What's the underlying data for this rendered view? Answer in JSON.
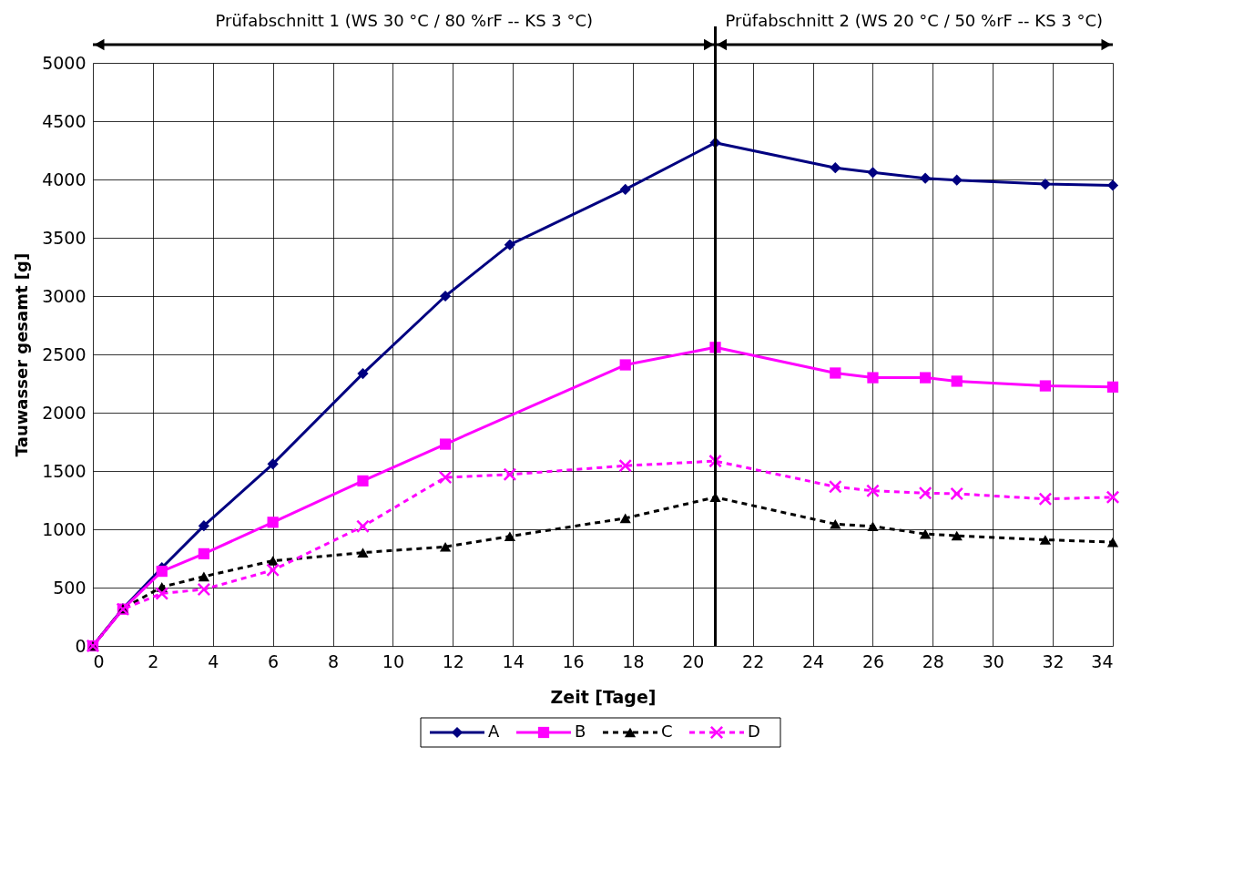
{
  "chart_data": {
    "type": "line",
    "xlabel": "Zeit [Tage]",
    "ylabel": "Tauwasser gesamt [g]",
    "x": [
      0,
      1,
      2.3,
      3.7,
      6,
      9,
      11.75,
      13.9,
      17.75,
      20.75,
      24.75,
      26,
      27.75,
      28.8,
      31.75,
      34
    ],
    "series": [
      {
        "name": "A",
        "color": "#000080",
        "marker": "diamond",
        "line_style": "solid",
        "values": [
          0,
          320,
          670,
          1030,
          1560,
          2335,
          3000,
          3440,
          3915,
          4315,
          4100,
          4060,
          4010,
          3995,
          3960,
          3950
        ]
      },
      {
        "name": "B",
        "color": "#ff00ff",
        "marker": "square",
        "line_style": "solid",
        "values": [
          0,
          315,
          640,
          790,
          1060,
          1415,
          1730,
          null,
          2410,
          2560,
          2340,
          2300,
          2300,
          2270,
          2230,
          2220
        ]
      },
      {
        "name": "C",
        "color": "#000000",
        "marker": "triangle",
        "line_style": "dashed",
        "values": [
          0,
          320,
          505,
          595,
          730,
          800,
          850,
          940,
          1095,
          1275,
          1045,
          1025,
          960,
          945,
          910,
          890
        ]
      },
      {
        "name": "D",
        "color": "#ff00ff",
        "marker": "cross",
        "line_style": "dashed",
        "values": [
          0,
          315,
          450,
          485,
          650,
          1025,
          1445,
          1470,
          1545,
          1585,
          1365,
          1330,
          1310,
          1305,
          1260,
          1275
        ]
      }
    ],
    "xlim": [
      0,
      34
    ],
    "xticks": [
      0,
      2,
      4,
      6,
      8,
      10,
      12,
      14,
      16,
      18,
      20,
      22,
      24,
      26,
      28,
      30,
      32,
      34
    ],
    "ylim": [
      0,
      5000
    ],
    "yticks": [
      0,
      500,
      1000,
      1500,
      2000,
      2500,
      3000,
      3500,
      4000,
      4500,
      5000
    ],
    "grid": true,
    "legend": "bottom",
    "ref_lines": [
      {
        "axis": "x",
        "value": 20.75,
        "color": "#000000"
      }
    ],
    "annotations": [
      "Prüfabschnitt 1 (WS 30 °C / 80 %rF -- KS 3 °C)",
      "Prüfabschnitt 2 (WS 20 °C / 50 %rF -- KS 3 °C)"
    ]
  }
}
